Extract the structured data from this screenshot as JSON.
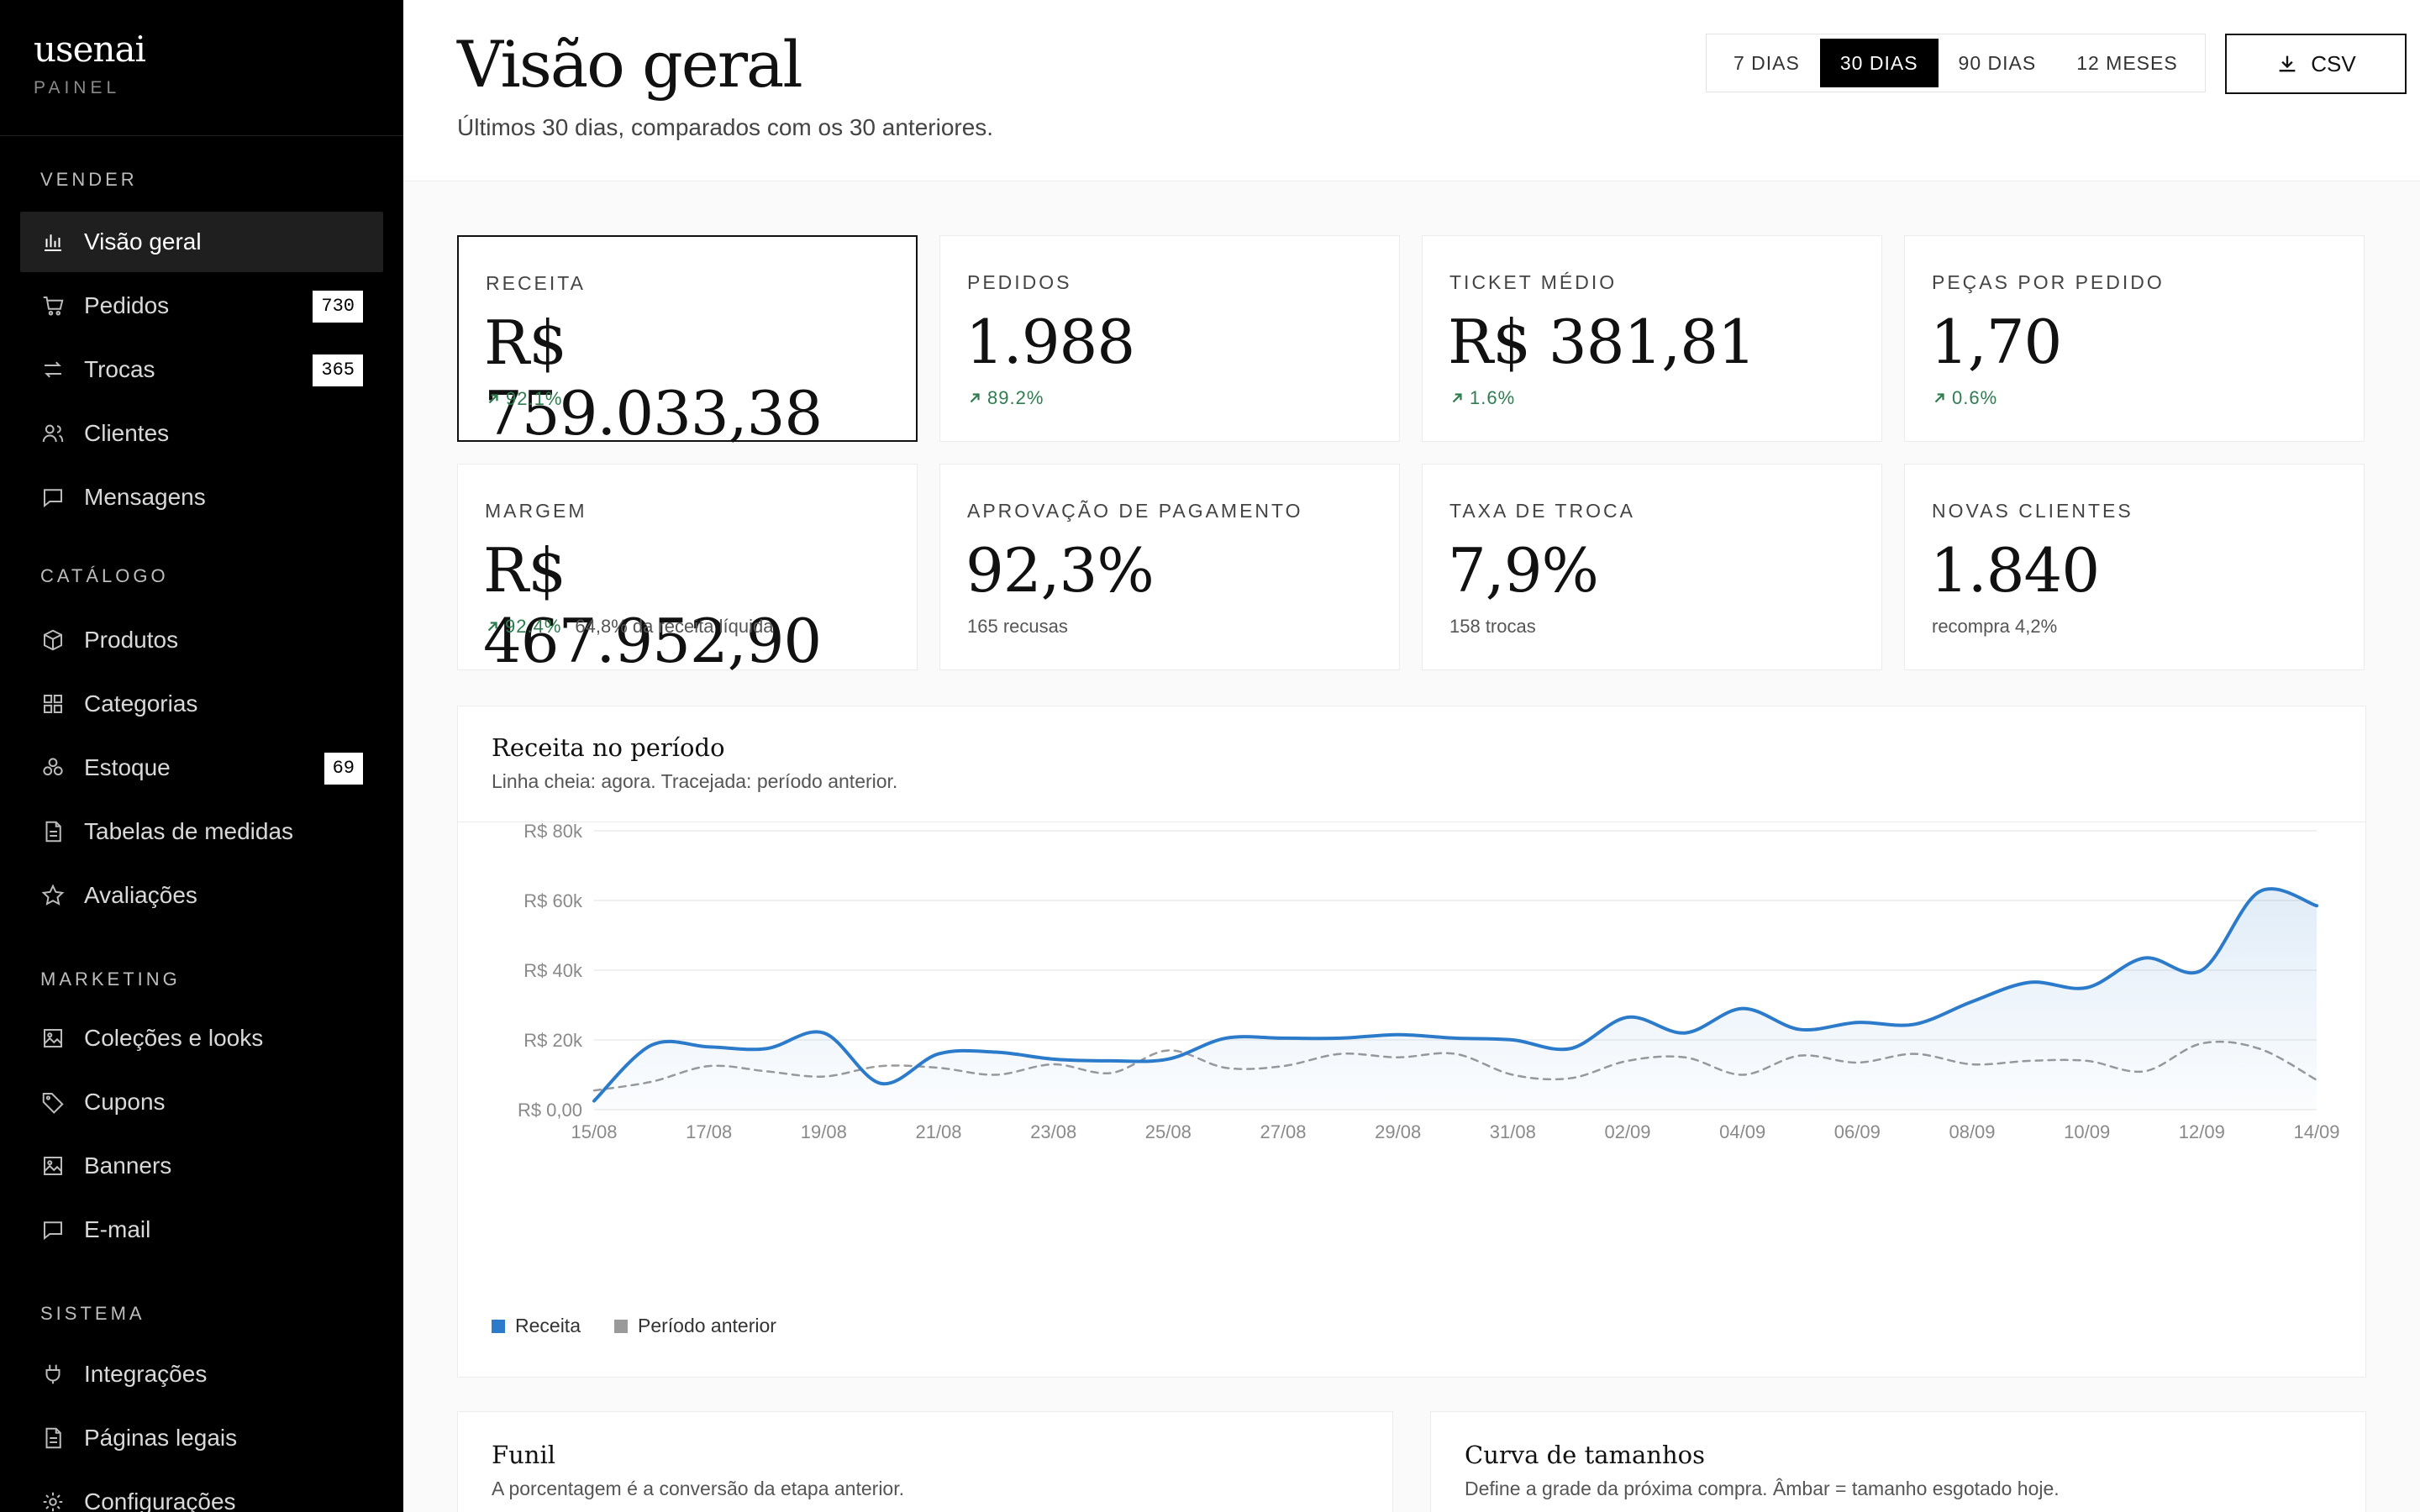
{
  "brand": {
    "logo": "usenai",
    "subtitle": "PAINEL"
  },
  "sidebar": {
    "sections": [
      {
        "title": "VENDER",
        "items": [
          {
            "label": "Visão geral",
            "icon": "bar-chart-icon",
            "active": true
          },
          {
            "label": "Pedidos",
            "icon": "cart-icon",
            "badge": "730"
          },
          {
            "label": "Trocas",
            "icon": "exchange-icon",
            "badge": "365"
          },
          {
            "label": "Clientes",
            "icon": "users-icon"
          },
          {
            "label": "Mensagens",
            "icon": "message-icon"
          }
        ]
      },
      {
        "title": "CATÁLOGO",
        "items": [
          {
            "label": "Produtos",
            "icon": "box-icon"
          },
          {
            "label": "Categorias",
            "icon": "grid-icon"
          },
          {
            "label": "Estoque",
            "icon": "stack-icon",
            "badge": "69"
          },
          {
            "label": "Tabelas de medidas",
            "icon": "document-icon"
          },
          {
            "label": "Avaliações",
            "icon": "star-icon"
          }
        ]
      },
      {
        "title": "MARKETING",
        "items": [
          {
            "label": "Coleções e looks",
            "icon": "image-icon"
          },
          {
            "label": "Cupons",
            "icon": "tag-icon"
          },
          {
            "label": "Banners",
            "icon": "image-icon"
          },
          {
            "label": "E-mail",
            "icon": "message-icon"
          }
        ]
      },
      {
        "title": "SISTEMA",
        "items": [
          {
            "label": "Integrações",
            "icon": "plug-icon"
          },
          {
            "label": "Páginas legais",
            "icon": "document-icon"
          },
          {
            "label": "Configurações",
            "icon": "gear-icon"
          }
        ]
      }
    ]
  },
  "header": {
    "title": "Visão geral",
    "subtitle": "Últimos 30 dias, comparados com os 30 anteriores.",
    "ranges": [
      "7 DIAS",
      "30 DIAS",
      "90 DIAS",
      "12 MESES"
    ],
    "active_range": "30 DIAS",
    "csv_label": "CSV"
  },
  "kpis": [
    {
      "label": "RECEITA",
      "value": "R$ 759.033,38",
      "delta": "92.1%",
      "note": ""
    },
    {
      "label": "PEDIDOS",
      "value": "1.988",
      "delta": "89.2%",
      "note": ""
    },
    {
      "label": "TICKET MÉDIO",
      "value": "R$ 381,81",
      "delta": "1.6%",
      "note": ""
    },
    {
      "label": "PEÇAS POR PEDIDO",
      "value": "1,70",
      "delta": "0.6%",
      "note": ""
    },
    {
      "label": "MARGEM",
      "value": "R$ 467.952,90",
      "delta": "92.4%",
      "note": "64,8% da receita líquida"
    },
    {
      "label": "APROVAÇÃO DE PAGAMENTO",
      "value": "92,3%",
      "delta": "",
      "note": "165 recusas"
    },
    {
      "label": "TAXA DE TROCA",
      "value": "7,9%",
      "delta": "",
      "note": "158 trocas"
    },
    {
      "label": "NOVAS CLIENTES",
      "value": "1.840",
      "delta": "",
      "note": "recompra 4,2%"
    }
  ],
  "chart": {
    "title": "Receita no período",
    "subtitle": "Linha cheia: agora. Tracejada: período anterior.",
    "legend": [
      {
        "name": "Receita",
        "color": "#2b7bca"
      },
      {
        "name": "Período anterior",
        "color": "#9a9a9a"
      }
    ]
  },
  "chart_data": {
    "type": "line",
    "x": [
      "15/08",
      "16/08",
      "17/08",
      "18/08",
      "19/08",
      "20/08",
      "21/08",
      "22/08",
      "23/08",
      "24/08",
      "25/08",
      "26/08",
      "27/08",
      "28/08",
      "29/08",
      "30/08",
      "31/08",
      "01/09",
      "02/09",
      "03/09",
      "04/09",
      "05/09",
      "06/09",
      "07/09",
      "08/09",
      "09/09",
      "10/09",
      "11/09",
      "12/09",
      "13/09",
      "14/09"
    ],
    "x_tick_labels": [
      "15/08",
      "17/08",
      "19/08",
      "21/08",
      "23/08",
      "25/08",
      "27/08",
      "29/08",
      "31/08",
      "02/09",
      "04/09",
      "06/09",
      "08/09",
      "10/09",
      "12/09",
      "14/09"
    ],
    "y_tick_labels": [
      "R$ 0,00",
      "R$ 20k",
      "R$ 40k",
      "R$ 60k",
      "R$ 80k"
    ],
    "ylim": [
      0,
      80000
    ],
    "series": [
      {
        "name": "Receita",
        "style": "solid",
        "fill": true,
        "values": [
          2500,
          18500,
          18000,
          17500,
          22000,
          7500,
          16000,
          16500,
          14500,
          14000,
          14500,
          20500,
          20500,
          20500,
          21500,
          20500,
          20000,
          17500,
          26500,
          22000,
          29000,
          23000,
          25000,
          24500,
          31000,
          36500,
          35000,
          43500,
          40000,
          62500,
          58500
        ]
      },
      {
        "name": "Período anterior",
        "style": "dashed",
        "fill": false,
        "values": [
          5500,
          8000,
          12500,
          11000,
          9500,
          12500,
          12000,
          10000,
          13000,
          10500,
          17000,
          12000,
          12500,
          16000,
          15000,
          16000,
          10000,
          9000,
          14000,
          15000,
          10000,
          15500,
          13500,
          16000,
          13000,
          14000,
          14000,
          11000,
          19000,
          17500,
          8500
        ]
      }
    ],
    "grid": true,
    "legend_position": "bottom-left"
  },
  "bottom_cards": [
    {
      "title": "Funil",
      "subtitle": "A porcentagem é a conversão da etapa anterior."
    },
    {
      "title": "Curva de tamanhos",
      "subtitle": "Define a grade da próxima compra. Âmbar = tamanho esgotado hoje."
    }
  ]
}
